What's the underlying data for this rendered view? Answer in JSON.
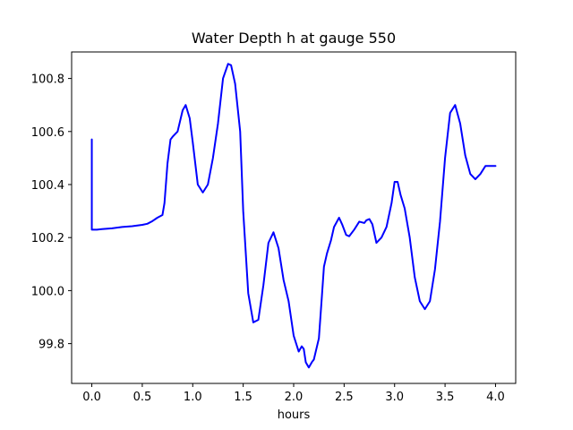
{
  "chart_data": {
    "type": "line",
    "title": "Water Depth h at gauge 550",
    "xlabel": "hours",
    "ylabel": "",
    "xlim": [
      -0.2,
      4.2
    ],
    "ylim": [
      99.65,
      100.9
    ],
    "grid": false,
    "legend": "none",
    "x_ticks": [
      0.0,
      0.5,
      1.0,
      1.5,
      2.0,
      2.5,
      3.0,
      3.5,
      4.0
    ],
    "x_tick_labels": [
      "0.0",
      "0.5",
      "1.0",
      "1.5",
      "2.0",
      "2.5",
      "3.0",
      "3.5",
      "4.0"
    ],
    "y_ticks": [
      99.8,
      100.0,
      100.2,
      100.4,
      100.6,
      100.8
    ],
    "y_tick_labels": [
      "99.8",
      "100.0",
      "100.2",
      "100.4",
      "100.6",
      "100.8"
    ],
    "series": [
      {
        "color": "#0000ff",
        "x": [
          0.0,
          0.0,
          0.05,
          0.1,
          0.2,
          0.3,
          0.4,
          0.5,
          0.55,
          0.6,
          0.65,
          0.7,
          0.72,
          0.75,
          0.78,
          0.8,
          0.85,
          0.9,
          0.93,
          0.97,
          1.0,
          1.05,
          1.1,
          1.15,
          1.2,
          1.25,
          1.3,
          1.35,
          1.38,
          1.42,
          1.47,
          1.5,
          1.55,
          1.6,
          1.65,
          1.7,
          1.75,
          1.8,
          1.85,
          1.9,
          1.95,
          2.0,
          2.05,
          2.08,
          2.1,
          2.12,
          2.15,
          2.18,
          2.2,
          2.25,
          2.28,
          2.3,
          2.33,
          2.37,
          2.4,
          2.45,
          2.48,
          2.52,
          2.55,
          2.6,
          2.65,
          2.7,
          2.72,
          2.75,
          2.78,
          2.82,
          2.87,
          2.92,
          2.97,
          3.0,
          3.03,
          3.06,
          3.1,
          3.15,
          3.2,
          3.25,
          3.3,
          3.35,
          3.4,
          3.45,
          3.5,
          3.55,
          3.6,
          3.65,
          3.7,
          3.75,
          3.8,
          3.85,
          3.9,
          3.95,
          4.0
        ],
        "y": [
          100.57,
          100.23,
          100.23,
          100.232,
          100.235,
          100.24,
          100.243,
          100.248,
          100.252,
          100.262,
          100.275,
          100.285,
          100.33,
          100.48,
          100.57,
          100.58,
          100.6,
          100.68,
          100.7,
          100.65,
          100.56,
          100.4,
          100.37,
          100.4,
          100.5,
          100.63,
          100.8,
          100.855,
          100.85,
          100.78,
          100.6,
          100.3,
          99.99,
          99.88,
          99.89,
          100.02,
          100.18,
          100.22,
          100.16,
          100.04,
          99.96,
          99.83,
          99.77,
          99.79,
          99.78,
          99.73,
          99.71,
          99.73,
          99.74,
          99.82,
          99.98,
          100.09,
          100.14,
          100.19,
          100.24,
          100.275,
          100.25,
          100.21,
          100.205,
          100.23,
          100.26,
          100.255,
          100.265,
          100.27,
          100.25,
          100.18,
          100.2,
          100.24,
          100.33,
          100.41,
          100.41,
          100.36,
          100.31,
          100.2,
          100.05,
          99.96,
          99.93,
          99.96,
          100.08,
          100.26,
          100.5,
          100.67,
          100.7,
          100.63,
          100.51,
          100.44,
          100.42,
          100.44,
          100.47,
          100.47,
          100.47
        ]
      }
    ]
  }
}
